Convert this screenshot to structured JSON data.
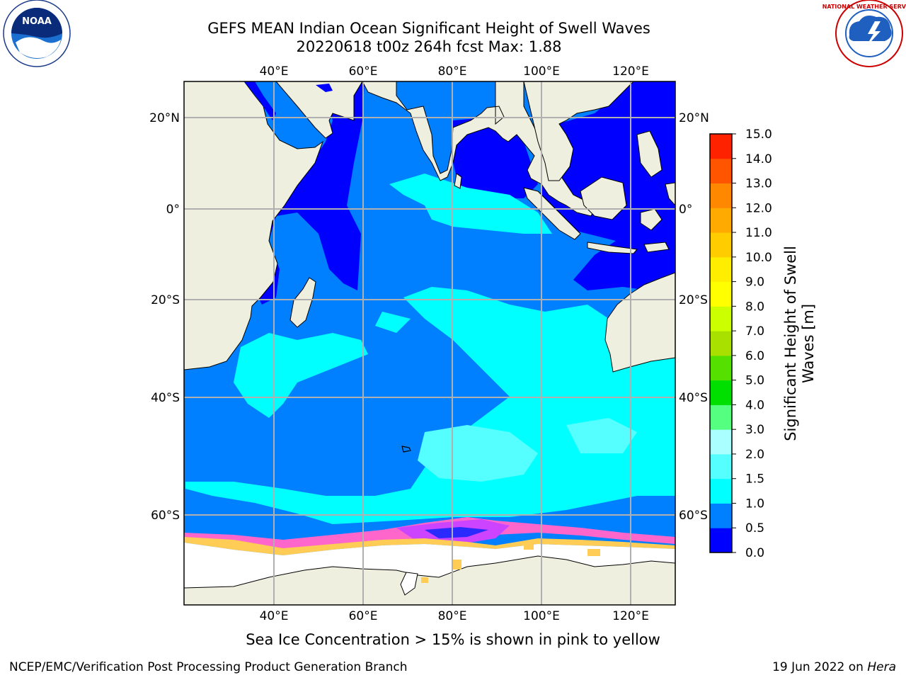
{
  "header": {
    "title_line1": "GEFS MEAN Indian Ocean Significant Height of Swell Waves",
    "title_line2": "20220618 t00z 264h fcst   Max: 1.88"
  },
  "logos": {
    "left": {
      "name": "NOAA",
      "ring_text": "NATIONAL OCEANIC AND ATMOSPHERIC ADMINISTRATION · U.S. DEPARTMENT OF COMMERCE"
    },
    "right": {
      "name": "NATIONAL WEATHER SERVICE"
    }
  },
  "map": {
    "lon_ticks": [
      "40°E",
      "60°E",
      "80°E",
      "100°E",
      "120°E"
    ],
    "lat_ticks": [
      "20°N",
      "0°",
      "20°S",
      "40°S",
      "60°S"
    ],
    "land_color": "#efefdf",
    "sea_ice_pink": "#ff66cc",
    "sea_ice_yellow": "#ffcc55"
  },
  "colorbar": {
    "label_line1": "Significant Height of Swell",
    "label_line2": "Waves [m]",
    "levels": [
      "0.0",
      "0.5",
      "1.0",
      "1.5",
      "2.0",
      "3.0",
      "4.0",
      "5.0",
      "6.0",
      "7.0",
      "8.0",
      "9.0",
      "10.0",
      "11.0",
      "12.0",
      "13.0",
      "14.0",
      "15.0"
    ],
    "colors": [
      "#0000ff",
      "#0080ff",
      "#00ffff",
      "#55ffff",
      "#aaffff",
      "#55ff80",
      "#00e000",
      "#55e000",
      "#aae000",
      "#ccff00",
      "#ffff00",
      "#ffee00",
      "#ffcc00",
      "#ffaa00",
      "#ff8800",
      "#ff5500",
      "#ff2200"
    ]
  },
  "caption": "Sea Ice Concentration > 15% is shown in pink to yellow",
  "footer": {
    "left": "NCEP/EMC/Verification Post Processing Product Generation Branch",
    "right_prefix": "19 Jun 2022 on",
    "right_machine": "Hera"
  }
}
